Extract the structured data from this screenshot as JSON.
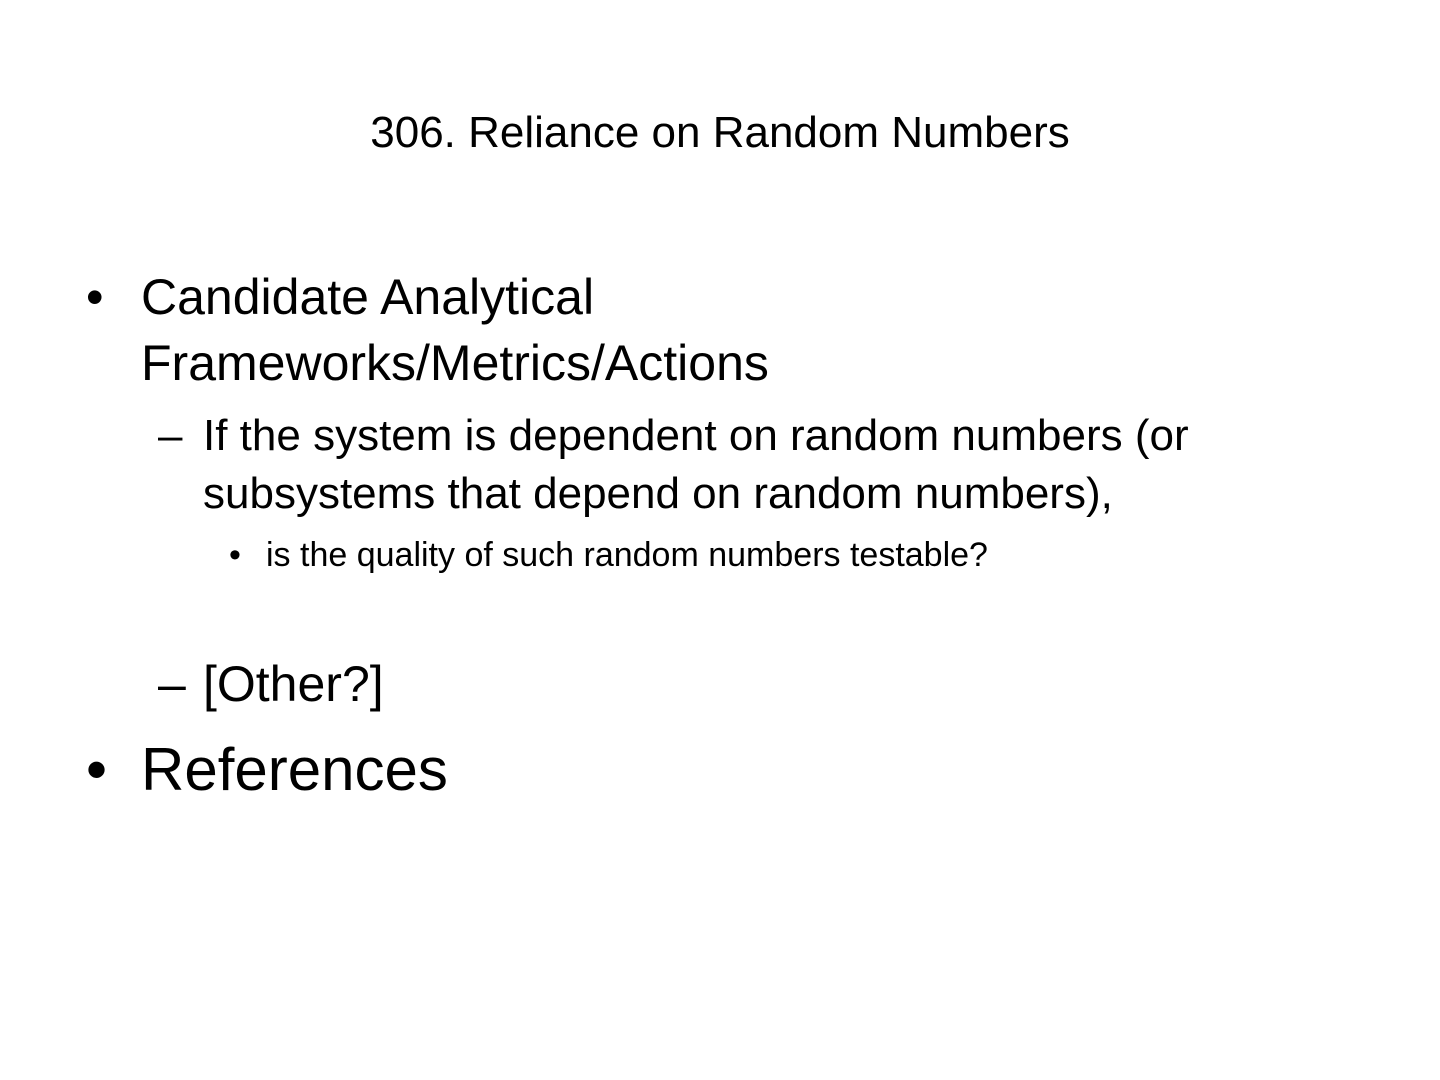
{
  "slide": {
    "title": "306. Reliance on Random Numbers",
    "bullets": [
      {
        "marker": "•",
        "lines": [
          "Candidate Analytical",
          "Frameworks/Metrics/Actions"
        ],
        "sub": [
          {
            "marker": "–",
            "lines": [
              "If the system is dependent on random numbers (or",
              "subsystems that depend on random numbers),"
            ],
            "sub": [
              {
                "marker": "•",
                "text": "is the quality of such random numbers testable?"
              }
            ]
          },
          {
            "marker": "–",
            "text": "[Other?]"
          }
        ]
      },
      {
        "marker": "•",
        "text": "References"
      }
    ]
  }
}
